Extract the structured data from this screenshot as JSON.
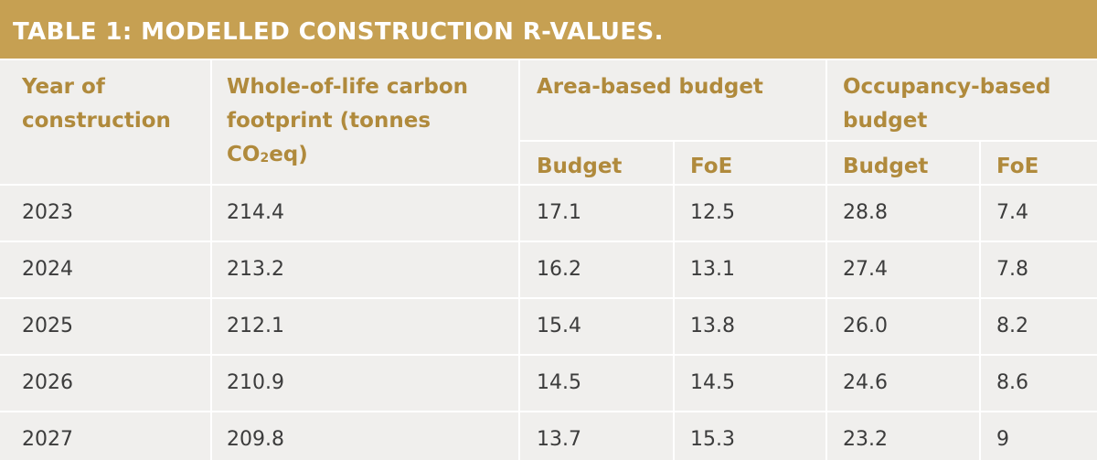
{
  "title": "TABLE 1: MODELLED CONSTRUCTION R-VALUES.",
  "headers": {
    "year_line1": "Year of",
    "year_line2": "construction",
    "carbon_line1": "Whole-of-life carbon",
    "carbon_line2": "footprint (tonnes",
    "carbon_line3_pre": "CO",
    "carbon_line3_sub": "2",
    "carbon_line3_post": "eq)",
    "area_group": "Area-based budget",
    "occupancy_line1": "Occupancy-based",
    "occupancy_line2": "budget",
    "area_budget": "Budget",
    "area_foe": "FoE",
    "occ_budget": "Budget",
    "occ_foe": "FoE"
  },
  "rows": [
    {
      "year": "2023",
      "carbon": "214.4",
      "area_budget": "17.1",
      "area_foe": "12.5",
      "occ_budget": "28.8",
      "occ_foe": "7.4"
    },
    {
      "year": "2024",
      "carbon": "213.2",
      "area_budget": "16.2",
      "area_foe": "13.1",
      "occ_budget": "27.4",
      "occ_foe": "7.8"
    },
    {
      "year": "2025",
      "carbon": "212.1",
      "area_budget": "15.4",
      "area_foe": "13.8",
      "occ_budget": "26.0",
      "occ_foe": "8.2"
    },
    {
      "year": "2026",
      "carbon": "210.9",
      "area_budget": "14.5",
      "area_foe": "14.5",
      "occ_budget": "24.6",
      "occ_foe": "8.6"
    },
    {
      "year": "2027",
      "carbon": "209.8",
      "area_budget": "13.7",
      "area_foe": "15.3",
      "occ_budget": "23.2",
      "occ_foe": "9"
    }
  ],
  "colors": {
    "title_bar": "#c6a052",
    "header_text": "#b08a3c",
    "body_text": "#3c3c3c",
    "background": "#f0efed"
  }
}
